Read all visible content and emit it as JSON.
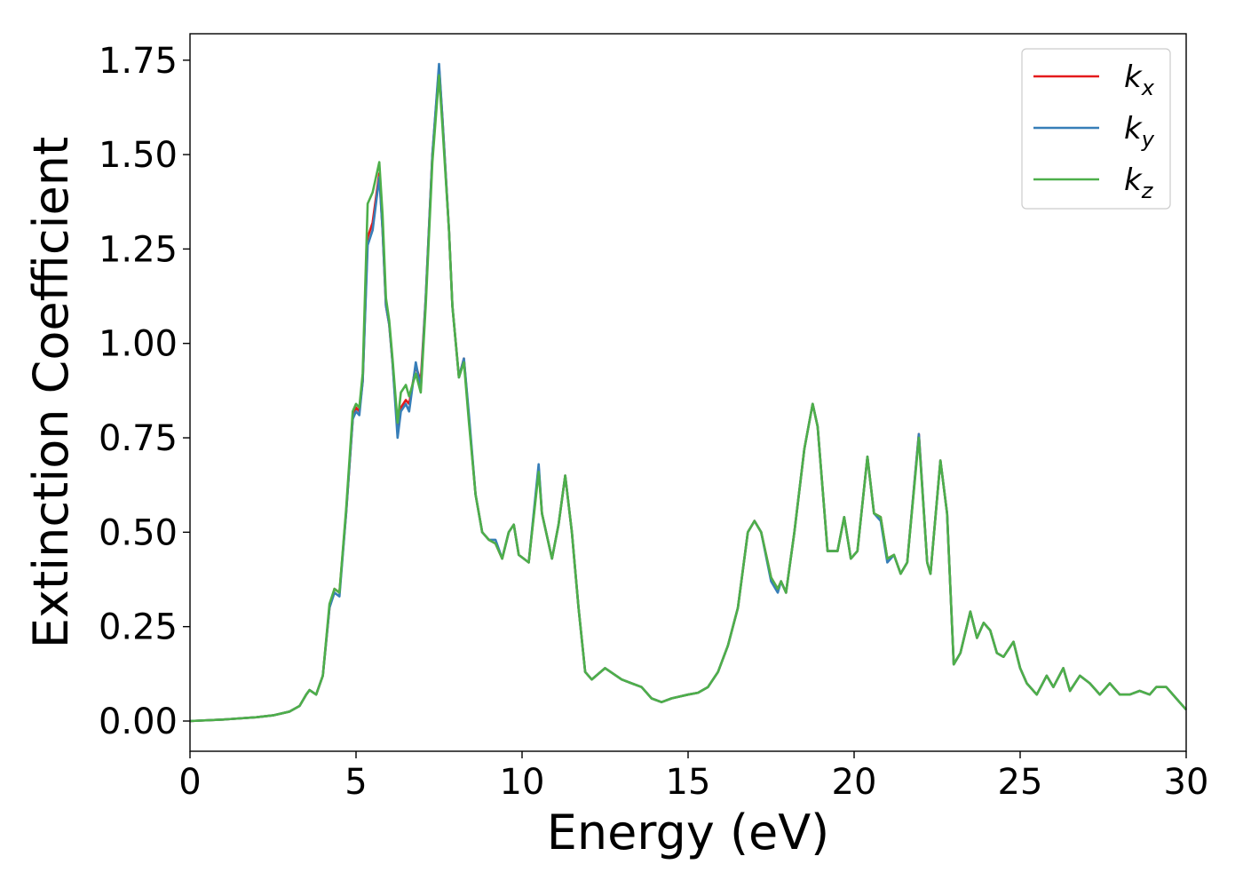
{
  "chart_data": {
    "type": "line",
    "xlabel": "Energy (eV)",
    "ylabel": "Extinction Coefficient",
    "xlim": [
      0,
      30
    ],
    "ylim": [
      -0.08,
      1.82
    ],
    "xticks": [
      0,
      5,
      10,
      15,
      20,
      25,
      30
    ],
    "yticks": [
      0.0,
      0.25,
      0.5,
      0.75,
      1.0,
      1.25,
      1.5,
      1.75
    ],
    "xtick_labels": [
      "0",
      "5",
      "10",
      "15",
      "20",
      "25",
      "30"
    ],
    "ytick_labels": [
      "0.00",
      "0.25",
      "0.50",
      "0.75",
      "1.00",
      "1.25",
      "1.50",
      "1.75"
    ],
    "grid": false,
    "legend_position": "top-right",
    "series": [
      {
        "name": "k_x",
        "label_main": "k",
        "label_sub": "x",
        "color": "#e41a1c",
        "x": [
          0,
          1,
          2,
          2.5,
          3,
          3.3,
          3.5,
          3.6,
          3.8,
          4.0,
          4.2,
          4.35,
          4.5,
          4.7,
          4.9,
          5.0,
          5.1,
          5.2,
          5.35,
          5.5,
          5.7,
          5.8,
          5.9,
          6.0,
          6.1,
          6.25,
          6.35,
          6.5,
          6.6,
          6.8,
          6.95,
          7.1,
          7.3,
          7.5,
          7.6,
          7.8,
          7.9,
          8.1,
          8.25,
          8.4,
          8.6,
          8.8,
          9.0,
          9.2,
          9.4,
          9.6,
          9.75,
          9.9,
          10.2,
          10.5,
          10.6,
          10.9,
          11.1,
          11.3,
          11.5,
          11.7,
          11.9,
          12.1,
          12.5,
          13.0,
          13.3,
          13.6,
          13.9,
          14.2,
          14.5,
          15.0,
          15.3,
          15.6,
          15.9,
          16.2,
          16.5,
          16.8,
          17.0,
          17.2,
          17.5,
          17.7,
          17.8,
          17.95,
          18.2,
          18.5,
          18.75,
          18.9,
          19.2,
          19.5,
          19.7,
          19.9,
          20.1,
          20.4,
          20.6,
          20.8,
          21.0,
          21.2,
          21.4,
          21.6,
          21.95,
          22.2,
          22.3,
          22.6,
          22.8,
          23.0,
          23.2,
          23.5,
          23.7,
          23.9,
          24.1,
          24.3,
          24.5,
          24.8,
          25.0,
          25.2,
          25.5,
          25.8,
          26.0,
          26.3,
          26.5,
          26.8,
          27.1,
          27.4,
          27.7,
          28.0,
          28.3,
          28.6,
          28.9,
          29.1,
          29.4,
          29.7,
          30.0
        ],
        "y": [
          0.0,
          0.004,
          0.01,
          0.015,
          0.025,
          0.04,
          0.07,
          0.082,
          0.07,
          0.12,
          0.3,
          0.35,
          0.34,
          0.55,
          0.8,
          0.83,
          0.82,
          0.9,
          1.28,
          1.32,
          1.45,
          1.3,
          1.1,
          1.05,
          0.95,
          0.77,
          0.83,
          0.85,
          0.84,
          0.94,
          0.9,
          1.12,
          1.5,
          1.73,
          1.6,
          1.3,
          1.1,
          0.91,
          0.96,
          0.8,
          0.6,
          0.5,
          0.48,
          0.47,
          0.43,
          0.5,
          0.52,
          0.44,
          0.42,
          0.67,
          0.55,
          0.43,
          0.52,
          0.65,
          0.5,
          0.3,
          0.13,
          0.11,
          0.14,
          0.11,
          0.1,
          0.09,
          0.06,
          0.05,
          0.06,
          0.07,
          0.075,
          0.09,
          0.13,
          0.2,
          0.3,
          0.5,
          0.53,
          0.5,
          0.38,
          0.35,
          0.37,
          0.34,
          0.5,
          0.72,
          0.84,
          0.78,
          0.45,
          0.45,
          0.54,
          0.43,
          0.45,
          0.7,
          0.55,
          0.54,
          0.43,
          0.44,
          0.39,
          0.42,
          0.76,
          0.42,
          0.39,
          0.69,
          0.55,
          0.15,
          0.18,
          0.29,
          0.22,
          0.26,
          0.24,
          0.18,
          0.17,
          0.21,
          0.14,
          0.1,
          0.07,
          0.12,
          0.09,
          0.14,
          0.08,
          0.12,
          0.1,
          0.07,
          0.1,
          0.07,
          0.07,
          0.08,
          0.07,
          0.09,
          0.09,
          0.06,
          0.03
        ]
      },
      {
        "name": "k_y",
        "label_main": "k",
        "label_sub": "y",
        "color": "#377eb8",
        "x": [
          0,
          1,
          2,
          2.5,
          3,
          3.3,
          3.5,
          3.6,
          3.8,
          4.0,
          4.2,
          4.35,
          4.5,
          4.7,
          4.9,
          5.0,
          5.1,
          5.2,
          5.35,
          5.5,
          5.7,
          5.8,
          5.9,
          6.0,
          6.1,
          6.25,
          6.35,
          6.5,
          6.6,
          6.8,
          6.95,
          7.1,
          7.3,
          7.5,
          7.6,
          7.8,
          7.9,
          8.1,
          8.25,
          8.4,
          8.6,
          8.8,
          9.0,
          9.2,
          9.4,
          9.6,
          9.75,
          9.9,
          10.2,
          10.5,
          10.6,
          10.9,
          11.1,
          11.3,
          11.5,
          11.7,
          11.9,
          12.1,
          12.5,
          13.0,
          13.3,
          13.6,
          13.9,
          14.2,
          14.5,
          15.0,
          15.3,
          15.6,
          15.9,
          16.2,
          16.5,
          16.8,
          17.0,
          17.2,
          17.5,
          17.7,
          17.8,
          17.95,
          18.2,
          18.5,
          18.75,
          18.9,
          19.2,
          19.5,
          19.7,
          19.9,
          20.1,
          20.4,
          20.6,
          20.8,
          21.0,
          21.2,
          21.4,
          21.6,
          21.95,
          22.2,
          22.3,
          22.6,
          22.8,
          23.0,
          23.2,
          23.5,
          23.7,
          23.9,
          24.1,
          24.3,
          24.5,
          24.8,
          25.0,
          25.2,
          25.5,
          25.8,
          26.0,
          26.3,
          26.5,
          26.8,
          27.1,
          27.4,
          27.7,
          28.0,
          28.3,
          28.6,
          28.9,
          29.1,
          29.4,
          29.7,
          30.0
        ],
        "y": [
          0.0,
          0.004,
          0.01,
          0.015,
          0.025,
          0.04,
          0.07,
          0.082,
          0.07,
          0.12,
          0.3,
          0.34,
          0.33,
          0.55,
          0.8,
          0.82,
          0.81,
          0.9,
          1.26,
          1.3,
          1.44,
          1.3,
          1.1,
          1.05,
          0.95,
          0.75,
          0.82,
          0.84,
          0.82,
          0.95,
          0.88,
          1.12,
          1.5,
          1.74,
          1.6,
          1.3,
          1.1,
          0.91,
          0.96,
          0.81,
          0.6,
          0.5,
          0.48,
          0.48,
          0.43,
          0.5,
          0.52,
          0.44,
          0.42,
          0.68,
          0.55,
          0.43,
          0.52,
          0.65,
          0.5,
          0.3,
          0.13,
          0.11,
          0.14,
          0.11,
          0.1,
          0.09,
          0.06,
          0.05,
          0.06,
          0.07,
          0.075,
          0.09,
          0.13,
          0.2,
          0.3,
          0.5,
          0.53,
          0.5,
          0.37,
          0.34,
          0.37,
          0.34,
          0.5,
          0.72,
          0.84,
          0.78,
          0.45,
          0.45,
          0.54,
          0.43,
          0.45,
          0.7,
          0.55,
          0.53,
          0.42,
          0.44,
          0.39,
          0.42,
          0.76,
          0.42,
          0.39,
          0.69,
          0.55,
          0.15,
          0.18,
          0.29,
          0.22,
          0.26,
          0.24,
          0.18,
          0.17,
          0.21,
          0.14,
          0.1,
          0.07,
          0.12,
          0.09,
          0.14,
          0.08,
          0.12,
          0.1,
          0.07,
          0.1,
          0.07,
          0.07,
          0.08,
          0.07,
          0.09,
          0.09,
          0.06,
          0.03
        ]
      },
      {
        "name": "k_z",
        "label_main": "k",
        "label_sub": "z",
        "color": "#4daf4a",
        "x": [
          0,
          1,
          2,
          2.5,
          3,
          3.3,
          3.5,
          3.6,
          3.8,
          4.0,
          4.2,
          4.35,
          4.5,
          4.7,
          4.9,
          5.0,
          5.1,
          5.2,
          5.35,
          5.5,
          5.7,
          5.8,
          5.9,
          6.0,
          6.1,
          6.25,
          6.35,
          6.5,
          6.6,
          6.8,
          6.95,
          7.1,
          7.3,
          7.5,
          7.6,
          7.8,
          7.9,
          8.1,
          8.25,
          8.4,
          8.6,
          8.8,
          9.0,
          9.2,
          9.4,
          9.6,
          9.75,
          9.9,
          10.2,
          10.5,
          10.6,
          10.9,
          11.1,
          11.3,
          11.5,
          11.7,
          11.9,
          12.1,
          12.5,
          13.0,
          13.3,
          13.6,
          13.9,
          14.2,
          14.5,
          15.0,
          15.3,
          15.6,
          15.9,
          16.2,
          16.5,
          16.8,
          17.0,
          17.2,
          17.5,
          17.7,
          17.8,
          17.95,
          18.2,
          18.5,
          18.75,
          18.9,
          19.2,
          19.5,
          19.7,
          19.9,
          20.1,
          20.4,
          20.6,
          20.8,
          21.0,
          21.2,
          21.4,
          21.6,
          21.95,
          22.2,
          22.3,
          22.6,
          22.8,
          23.0,
          23.2,
          23.5,
          23.7,
          23.9,
          24.1,
          24.3,
          24.5,
          24.8,
          25.0,
          25.2,
          25.5,
          25.8,
          26.0,
          26.3,
          26.5,
          26.8,
          27.1,
          27.4,
          27.7,
          28.0,
          28.3,
          28.6,
          28.9,
          29.1,
          29.4,
          29.7,
          30.0
        ],
        "y": [
          0.0,
          0.004,
          0.01,
          0.015,
          0.025,
          0.04,
          0.07,
          0.082,
          0.07,
          0.12,
          0.31,
          0.35,
          0.34,
          0.56,
          0.82,
          0.84,
          0.83,
          0.92,
          1.37,
          1.4,
          1.48,
          1.34,
          1.12,
          1.06,
          0.96,
          0.79,
          0.87,
          0.89,
          0.86,
          0.92,
          0.87,
          1.1,
          1.48,
          1.71,
          1.58,
          1.3,
          1.1,
          0.91,
          0.95,
          0.79,
          0.6,
          0.5,
          0.48,
          0.47,
          0.43,
          0.5,
          0.52,
          0.44,
          0.42,
          0.66,
          0.55,
          0.43,
          0.52,
          0.65,
          0.5,
          0.3,
          0.13,
          0.11,
          0.14,
          0.11,
          0.1,
          0.09,
          0.06,
          0.05,
          0.06,
          0.07,
          0.075,
          0.09,
          0.13,
          0.2,
          0.3,
          0.5,
          0.53,
          0.5,
          0.38,
          0.35,
          0.37,
          0.34,
          0.5,
          0.72,
          0.84,
          0.78,
          0.45,
          0.45,
          0.54,
          0.43,
          0.45,
          0.7,
          0.55,
          0.54,
          0.43,
          0.44,
          0.39,
          0.42,
          0.75,
          0.42,
          0.39,
          0.69,
          0.55,
          0.15,
          0.18,
          0.29,
          0.22,
          0.26,
          0.24,
          0.18,
          0.17,
          0.21,
          0.14,
          0.1,
          0.07,
          0.12,
          0.09,
          0.14,
          0.08,
          0.12,
          0.1,
          0.07,
          0.1,
          0.07,
          0.07,
          0.08,
          0.07,
          0.09,
          0.09,
          0.06,
          0.03
        ]
      }
    ]
  }
}
